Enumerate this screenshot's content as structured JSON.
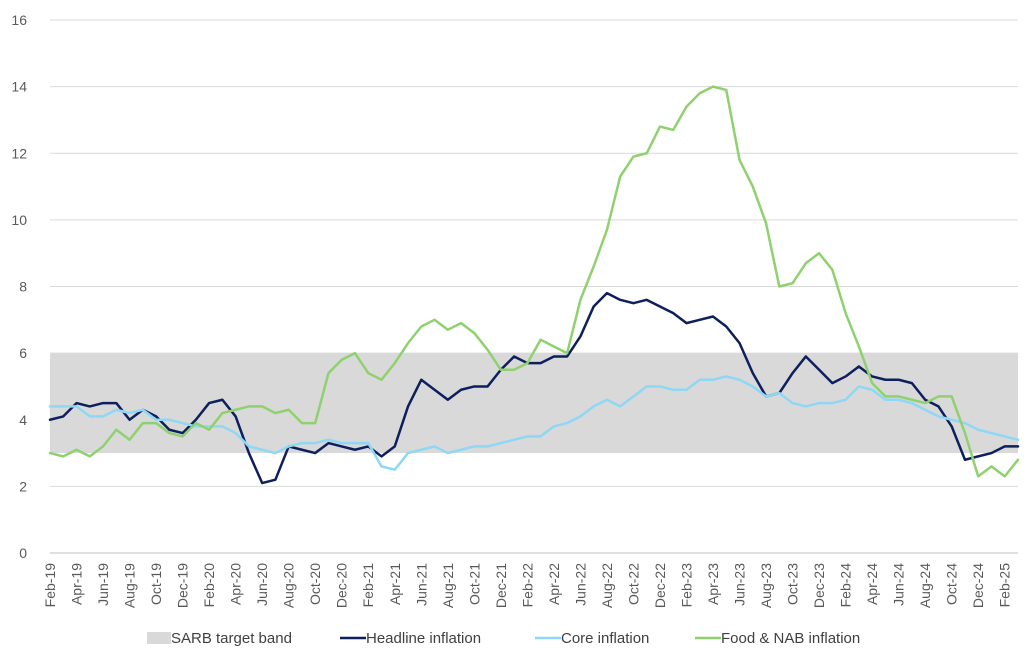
{
  "chart_data": {
    "type": "line",
    "title": "",
    "xlabel": "",
    "ylabel": "",
    "ylim": [
      0,
      16
    ],
    "yticks": [
      0,
      2,
      4,
      6,
      8,
      10,
      12,
      14,
      16
    ],
    "grid": "horizontal",
    "legend_position": "bottom",
    "months": [
      "Feb-19",
      "Mar-19",
      "Apr-19",
      "May-19",
      "Jun-19",
      "Jul-19",
      "Aug-19",
      "Sep-19",
      "Oct-19",
      "Nov-19",
      "Dec-19",
      "Jan-20",
      "Feb-20",
      "Mar-20",
      "Apr-20",
      "May-20",
      "Jun-20",
      "Jul-20",
      "Aug-20",
      "Sep-20",
      "Oct-20",
      "Nov-20",
      "Dec-20",
      "Jan-21",
      "Feb-21",
      "Mar-21",
      "Apr-21",
      "May-21",
      "Jun-21",
      "Jul-21",
      "Aug-21",
      "Sep-21",
      "Oct-21",
      "Nov-21",
      "Dec-21",
      "Jan-22",
      "Feb-22",
      "Mar-22",
      "Apr-22",
      "May-22",
      "Jun-22",
      "Jul-22",
      "Aug-22",
      "Sep-22",
      "Oct-22",
      "Nov-22",
      "Dec-22",
      "Jan-23",
      "Feb-23",
      "Mar-23",
      "Apr-23",
      "May-23",
      "Jun-23",
      "Jul-23",
      "Aug-23",
      "Sep-23",
      "Oct-23",
      "Nov-23",
      "Dec-23",
      "Jan-24",
      "Feb-24",
      "Mar-24",
      "Apr-24",
      "May-24",
      "Jun-24",
      "Jul-24",
      "Aug-24",
      "Sep-24",
      "Oct-24",
      "Nov-24",
      "Dec-24",
      "Jan-25",
      "Feb-25",
      "Mar-25"
    ],
    "x_tick_labels": [
      "Feb-19",
      "Apr-19",
      "Jun-19",
      "Aug-19",
      "Oct-19",
      "Dec-19",
      "Feb-20",
      "Apr-20",
      "Jun-20",
      "Aug-20",
      "Oct-20",
      "Dec-20",
      "Feb-21",
      "Apr-21",
      "Jun-21",
      "Aug-21",
      "Oct-21",
      "Dec-21",
      "Feb-22",
      "Apr-22",
      "Jun-22",
      "Aug-22",
      "Oct-22",
      "Dec-22",
      "Feb-23",
      "Apr-23",
      "Jun-23",
      "Aug-23",
      "Oct-23",
      "Dec-23",
      "Feb-24",
      "Apr-24",
      "Jun-24",
      "Aug-24",
      "Oct-24",
      "Dec-24",
      "Feb-25"
    ],
    "band": {
      "name": "SARB target band",
      "lower": 3,
      "upper": 6,
      "color": "#d9d9d9"
    },
    "series": [
      {
        "name": "Headline inflation",
        "color": "#0d1f5c",
        "values": [
          4.0,
          4.1,
          4.5,
          4.4,
          4.5,
          4.5,
          4.0,
          4.3,
          4.1,
          3.7,
          3.6,
          4.0,
          4.5,
          4.6,
          4.1,
          3.0,
          2.1,
          2.2,
          3.2,
          3.1,
          3.0,
          3.3,
          3.2,
          3.1,
          3.2,
          2.9,
          3.2,
          4.4,
          5.2,
          4.9,
          4.6,
          4.9,
          5.0,
          5.0,
          5.5,
          5.9,
          5.7,
          5.7,
          5.9,
          5.9,
          6.5,
          7.4,
          7.8,
          7.6,
          7.5,
          7.6,
          7.4,
          7.2,
          6.9,
          7.0,
          7.1,
          6.8,
          6.3,
          5.4,
          4.7,
          4.8,
          5.4,
          5.9,
          5.5,
          5.1,
          5.3,
          5.6,
          5.3,
          5.2,
          5.2,
          5.1,
          4.6,
          4.4,
          3.8,
          2.8,
          2.9,
          3.0,
          3.2,
          3.2
        ]
      },
      {
        "name": "Core inflation",
        "color": "#8ed8f5",
        "values": [
          4.4,
          4.4,
          4.4,
          4.1,
          4.1,
          4.3,
          4.2,
          4.3,
          4.0,
          4.0,
          3.9,
          3.8,
          3.8,
          3.8,
          3.6,
          3.2,
          3.1,
          3.0,
          3.2,
          3.3,
          3.3,
          3.4,
          3.3,
          3.3,
          3.3,
          2.6,
          2.5,
          3.0,
          3.1,
          3.2,
          3.0,
          3.1,
          3.2,
          3.2,
          3.3,
          3.4,
          3.5,
          3.5,
          3.8,
          3.9,
          4.1,
          4.4,
          4.6,
          4.4,
          4.7,
          5.0,
          5.0,
          4.9,
          4.9,
          5.2,
          5.2,
          5.3,
          5.2,
          5.0,
          4.7,
          4.8,
          4.5,
          4.4,
          4.5,
          4.5,
          4.6,
          5.0,
          4.9,
          4.6,
          4.6,
          4.5,
          4.3,
          4.1,
          4.0,
          3.9,
          3.7,
          3.6,
          3.5,
          3.4
        ]
      },
      {
        "name": "Food & NAB inflation",
        "color": "#8fd16f",
        "values": [
          3.0,
          2.9,
          3.1,
          2.9,
          3.2,
          3.7,
          3.4,
          3.9,
          3.9,
          3.6,
          3.5,
          3.9,
          3.7,
          4.2,
          4.3,
          4.4,
          4.4,
          4.2,
          4.3,
          3.9,
          3.9,
          5.4,
          5.8,
          6.0,
          5.4,
          5.2,
          5.7,
          6.3,
          6.8,
          7.0,
          6.7,
          6.9,
          6.6,
          6.1,
          5.5,
          5.5,
          5.7,
          6.4,
          6.2,
          6.0,
          7.6,
          8.6,
          9.7,
          11.3,
          11.9,
          12.0,
          12.8,
          12.7,
          13.4,
          13.8,
          14.0,
          13.9,
          11.8,
          11.0,
          9.9,
          8.0,
          8.1,
          8.7,
          9.0,
          8.5,
          7.2,
          6.2,
          5.1,
          4.7,
          4.7,
          4.6,
          4.5,
          4.7,
          4.7,
          3.6,
          2.3,
          2.6,
          2.3,
          2.8
        ]
      }
    ]
  }
}
